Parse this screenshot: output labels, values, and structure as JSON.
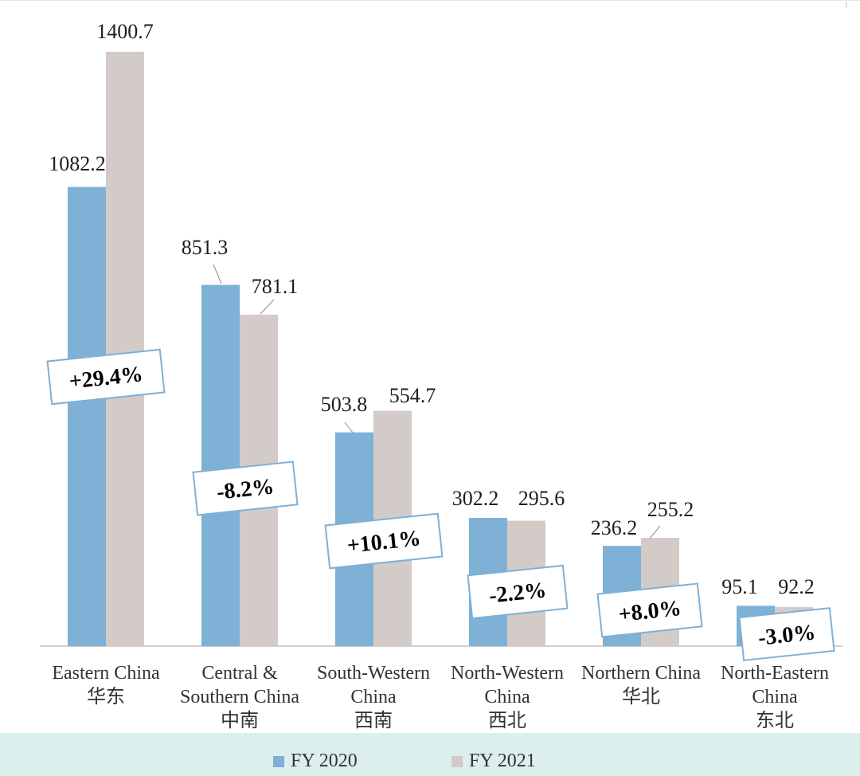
{
  "chart_data": {
    "type": "bar",
    "title": "",
    "xlabel": "",
    "ylabel": "",
    "ylim": [
      0,
      1400.7
    ],
    "grid": false,
    "legend_position": "bottom",
    "categories": [
      {
        "en": "Eastern China",
        "zh": "华东"
      },
      {
        "en": "Central &",
        "en2": "Southern China",
        "zh": "中南"
      },
      {
        "en": "South-Western",
        "en2": "China",
        "zh": "西南"
      },
      {
        "en": "North-Western",
        "en2": "China",
        "zh": "西北"
      },
      {
        "en": "Northern China",
        "zh": "华北"
      },
      {
        "en": "North-Eastern",
        "en2": "China",
        "zh": "东北"
      }
    ],
    "series": [
      {
        "name": "FY 2020",
        "color": "#7fb0d6",
        "values": [
          1082.2,
          851.3,
          503.8,
          302.2,
          236.2,
          95.1
        ]
      },
      {
        "name": "FY 2021",
        "color": "#d3cbc7",
        "values": [
          1400.7,
          781.1,
          554.7,
          295.6,
          255.2,
          92.2
        ]
      }
    ],
    "value_labels": [
      [
        "1082.2",
        "851.3",
        "503.8",
        "302.2",
        "236.2",
        "95.1"
      ],
      [
        "1400.7",
        "781.1",
        "554.7",
        "295.6",
        "255.2",
        "92.2"
      ]
    ],
    "change_labels": [
      "+29.4%",
      "-8.2%",
      "+10.1%",
      "-2.2%",
      "+8.0%",
      "-3.0%"
    ]
  },
  "colors": {
    "axis": "#bfbfbf",
    "box_border": "#7fb0d6",
    "leader_line": "#8c8c8c",
    "legend_band": "#dcefec"
  },
  "legend": {
    "fy2020_label": "FY 2020",
    "fy2021_label": "FY 2021"
  }
}
